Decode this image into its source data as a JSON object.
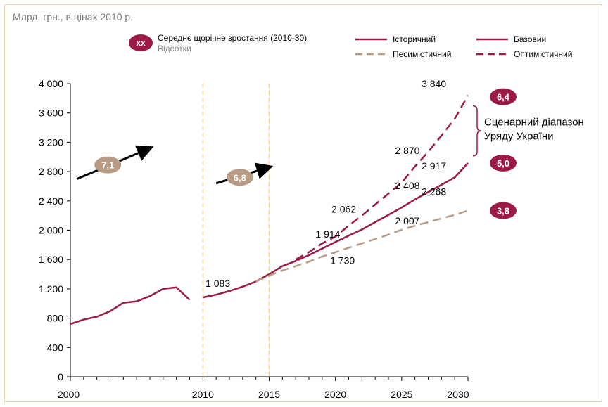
{
  "chart_data": {
    "type": "line",
    "unit_label": "Млрд. грн., в цінах 2010 р.",
    "xlim": [
      2000,
      2030
    ],
    "ylim": [
      0,
      4000
    ],
    "x_ticks": [
      {
        "value": 2000,
        "label": "2000"
      },
      {
        "value": 2010,
        "label": "2010"
      },
      {
        "value": 2015,
        "label": "2015"
      },
      {
        "value": 2020,
        "label": "2020"
      },
      {
        "value": 2025,
        "label": "2025"
      },
      {
        "value": 2030,
        "label": "2030"
      }
    ],
    "y_ticks": [
      {
        "value": 0,
        "label": "0"
      },
      {
        "value": 400,
        "label": "400"
      },
      {
        "value": 800,
        "label": "800"
      },
      {
        "value": 1200,
        "label": "1 200"
      },
      {
        "value": 1600,
        "label": "1 600"
      },
      {
        "value": 2000,
        "label": "2 000"
      },
      {
        "value": 2400,
        "label": "2 400"
      },
      {
        "value": 2800,
        "label": "2 800"
      },
      {
        "value": 3200,
        "label": "3 200"
      },
      {
        "value": 3600,
        "label": "3 600"
      },
      {
        "value": 4000,
        "label": "4 000"
      }
    ],
    "legend": {
      "badge_text": "xx",
      "badge_label": "Середнє щорічне зростання (2010-30)",
      "badge_sublabel": "Відсотки",
      "entries": [
        {
          "key": "historical",
          "label": "Історичний"
        },
        {
          "key": "base",
          "label": "Базовий"
        },
        {
          "key": "pessimistic",
          "label": "Песимістичний"
        },
        {
          "key": "optimistic",
          "label": "Оптимістичний"
        }
      ]
    },
    "series": [
      {
        "key": "historical",
        "name": "Історичний",
        "style": "solid",
        "color": "#9b1b45",
        "x": [
          2000,
          2001,
          2002,
          2003,
          2004,
          2005,
          2006,
          2007,
          2008,
          2009
        ],
        "y": [
          720,
          780,
          820,
          895,
          1010,
          1030,
          1100,
          1200,
          1220,
          1050
        ]
      },
      {
        "key": "base",
        "name": "Базовий",
        "style": "solid",
        "color": "#9b1b45",
        "x": [
          2010,
          2011,
          2012,
          2013,
          2014,
          2015,
          2016,
          2017,
          2018,
          2019,
          2020,
          2021,
          2022,
          2023,
          2024,
          2025,
          2026,
          2027,
          2028,
          2029,
          2030
        ],
        "y": [
          1083,
          1120,
          1170,
          1230,
          1300,
          1400,
          1510,
          1580,
          1660,
          1750,
          1840,
          1925,
          2010,
          2110,
          2210,
          2310,
          2420,
          2520,
          2620,
          2720,
          2917
        ]
      },
      {
        "key": "pessimistic",
        "name": "Песимістичний",
        "style": "dashed",
        "color": "#b79b85",
        "x": [
          2014,
          2015,
          2016,
          2017,
          2018,
          2019,
          2020,
          2021,
          2022,
          2023,
          2024,
          2025,
          2026,
          2027,
          2028,
          2029,
          2030
        ],
        "y": [
          1300,
          1380,
          1450,
          1510,
          1570,
          1640,
          1700,
          1760,
          1820,
          1880,
          1940,
          2007,
          2060,
          2110,
          2160,
          2210,
          2268
        ]
      },
      {
        "key": "optimistic",
        "name": "Оптимістичний",
        "style": "dashed",
        "color": "#9b1b45",
        "x": [
          2017,
          2018,
          2019,
          2020,
          2021,
          2022,
          2023,
          2024,
          2025,
          2026,
          2027,
          2028,
          2029,
          2030
        ],
        "y": [
          1600,
          1700,
          1820,
          1914,
          2062,
          2200,
          2350,
          2500,
          2650,
          2870,
          3070,
          3290,
          3520,
          3840
        ]
      }
    ],
    "reference_lines": [
      2010,
      2015
    ],
    "growth_arrows": [
      {
        "value": "7,1",
        "from": [
          2000.5,
          2700
        ],
        "to": [
          2006,
          3120
        ],
        "color": "#b79b85"
      },
      {
        "value": "6,8",
        "from": [
          2011,
          2640
        ],
        "to": [
          2015,
          2860
        ],
        "color": "#b79b85"
      }
    ],
    "data_labels": [
      {
        "text": "1 083",
        "x": 2010.2,
        "y": 1230
      },
      {
        "text": "1 914",
        "x": 2018.5,
        "y": 1900
      },
      {
        "text": "1 730",
        "x": 2019.6,
        "y": 1540
      },
      {
        "text": "2 062",
        "x": 2019.7,
        "y": 2240
      },
      {
        "text": "2 007",
        "x": 2024.5,
        "y": 2080
      },
      {
        "text": "2 408",
        "x": 2024.5,
        "y": 2560
      },
      {
        "text": "2 870",
        "x": 2024.5,
        "y": 3040
      },
      {
        "text": "3 840",
        "x": 2026.5,
        "y": 3950
      },
      {
        "text": "2 917",
        "x": 2026.5,
        "y": 2830
      },
      {
        "text": "2 268",
        "x": 2026.5,
        "y": 2480
      }
    ],
    "end_badges": [
      {
        "value": "6,4",
        "y": 3840,
        "color": "#9b1b45"
      },
      {
        "value": "5,0",
        "y": 2917,
        "color": "#9b1b45"
      },
      {
        "value": "3,8",
        "y": 2268,
        "color": "#9b1b45"
      }
    ],
    "range_annotation": {
      "lines": [
        "Сценарний діапазон",
        "Уряду України"
      ],
      "y_top": 3840,
      "y_bottom": 2917
    }
  }
}
